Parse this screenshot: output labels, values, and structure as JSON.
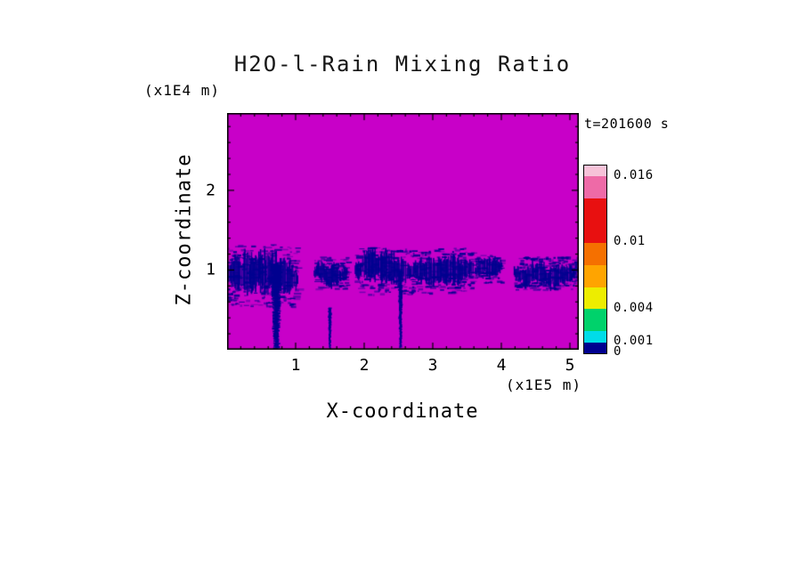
{
  "chart_data": {
    "type": "heatmap",
    "title": "H2O-l-Rain Mixing Ratio",
    "annotation": "t=201600 s",
    "xlabel": "X-coordinate",
    "x_units_label": "(x1E5 m)",
    "ylabel": "Z-coordinate",
    "y_units_label": "(x1E4 m)",
    "xlim": [
      0,
      5.13
    ],
    "ylim": [
      0,
      2.97
    ],
    "xticks": [
      1,
      2,
      3,
      4,
      5
    ],
    "yticks": [
      1,
      2
    ],
    "minor_tick_step": 0.2,
    "grid": false,
    "legend_position": "right",
    "background_value_color": "#C800C8",
    "rain_color": "#000090",
    "colorbar": {
      "min": 0,
      "max": 0.017,
      "levels": [
        0,
        0.001,
        0.002,
        0.004,
        0.006,
        0.008,
        0.01,
        0.014,
        0.016,
        0.017
      ],
      "colors": [
        "#000090",
        "#00DCE8",
        "#00D26B",
        "#EDED00",
        "#FFA400",
        "#F57000",
        "#E81010",
        "#EE6AA7",
        "#F6C2D8"
      ],
      "tick_labels": [
        {
          "text": "0",
          "value": 0
        },
        {
          "text": "0.001",
          "value": 0.001
        },
        {
          "text": "0.004",
          "value": 0.004
        },
        {
          "text": "0.01",
          "value": 0.01
        },
        {
          "text": "0.016",
          "value": 0.016
        }
      ]
    },
    "rain_features": {
      "description": "dark navy rain band near z = 1 (x1E4 m) over magenta zero-value background",
      "band_z_center_1e4_m": 1.0,
      "clusters": [
        {
          "x0": -0.05,
          "x1": 1.02,
          "z0": 0.66,
          "z1": 1.22,
          "density": 1.0
        },
        {
          "x0": 1.26,
          "x1": 1.74,
          "z0": 0.82,
          "z1": 1.11,
          "density": 0.8
        },
        {
          "x0": 1.86,
          "x1": 2.69,
          "z0": 0.78,
          "z1": 1.21,
          "density": 0.85
        },
        {
          "x0": 2.69,
          "x1": 3.58,
          "z0": 0.8,
          "z1": 1.2,
          "density": 1.0
        },
        {
          "x0": 3.61,
          "x1": 3.99,
          "z0": 0.88,
          "z1": 1.15,
          "density": 0.8
        },
        {
          "x0": 4.18,
          "x1": 5.1,
          "z0": 0.82,
          "z1": 1.12,
          "density": 0.9
        }
      ],
      "downdraft_streaks": [
        {
          "x": 0.72,
          "width": 0.12,
          "z_top": 1.08,
          "z_bottom": 0.03
        },
        {
          "x": 1.5,
          "width": 0.04,
          "z_top": 0.53,
          "z_bottom": 0.02
        },
        {
          "x": 2.53,
          "width": 0.05,
          "z_top": 1.0,
          "z_bottom": 0.04
        }
      ]
    }
  }
}
